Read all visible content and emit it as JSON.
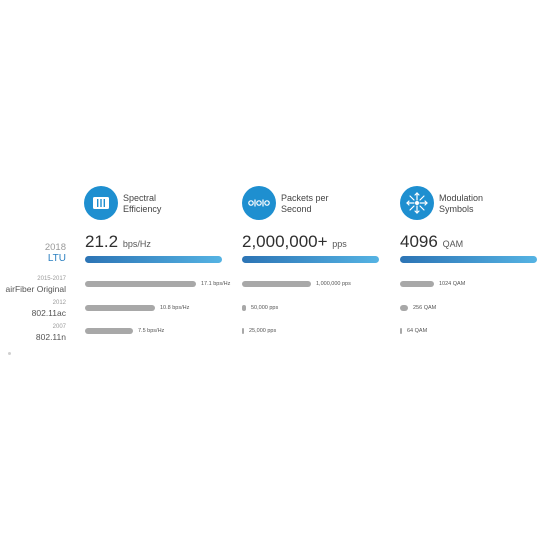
{
  "rows": {
    "ltu": {
      "year": "2018",
      "name": "LTU"
    },
    "previous": [
      {
        "year": "2015-2017",
        "name": "airFiber Original"
      },
      {
        "year": "2012",
        "name": "802.11ac"
      },
      {
        "year": "2007",
        "name": "802.11n"
      }
    ]
  },
  "columns": [
    {
      "icon": "spectrum-icon",
      "title_line1": "Spectral",
      "title_line2": "Efficiency",
      "ltu_value": "21.2",
      "ltu_unit": "bps/Hz",
      "bars": [
        {
          "label": "17.1 bps/Hz",
          "fraction": 0.81
        },
        {
          "label": "10.8 bps/Hz",
          "fraction": 0.51
        },
        {
          "label": "7.5 bps/Hz",
          "fraction": 0.35
        }
      ]
    },
    {
      "icon": "packets-icon",
      "title_line1": "Packets per",
      "title_line2": "Second",
      "ltu_value": "2,000,000+",
      "ltu_unit": "pps",
      "bars": [
        {
          "label": "1,000,000 pps",
          "fraction": 0.5
        },
        {
          "label": "50,000 pps",
          "fraction": 0.03
        },
        {
          "label": "25,000 pps",
          "fraction": 0.01
        }
      ]
    },
    {
      "icon": "modulation-icon",
      "title_line1": "Modulation",
      "title_line2": "Symbols",
      "ltu_value": "4096",
      "ltu_unit": "QAM",
      "bars": [
        {
          "label": "1024 QAM",
          "fraction": 0.25
        },
        {
          "label": "256 QAM",
          "fraction": 0.06
        },
        {
          "label": "64 QAM",
          "fraction": 0.016
        }
      ]
    }
  ],
  "colors": {
    "accent": "#1e8fd0",
    "ltu_label": "#2a7fc0",
    "bar_gray": "#a8a8a8"
  }
}
